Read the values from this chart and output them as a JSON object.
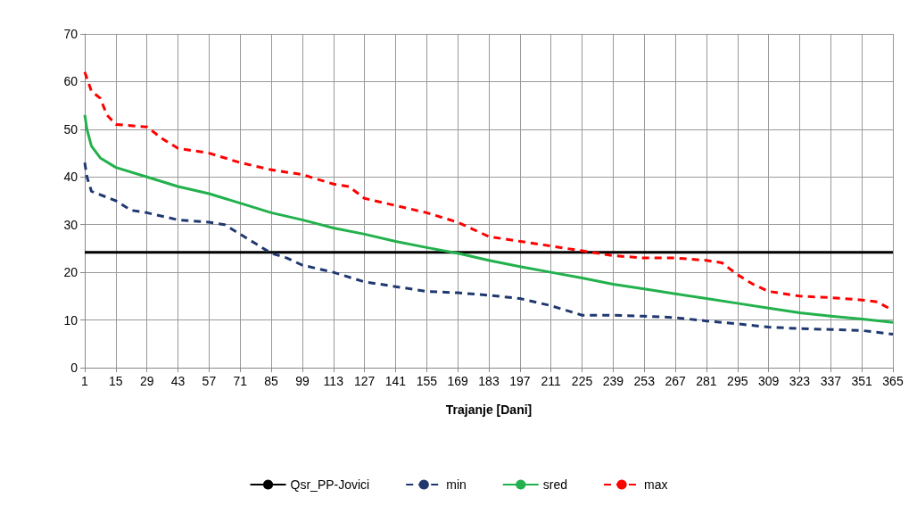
{
  "chart_data": {
    "type": "line",
    "xlabel": "Trajanje [Dani]",
    "xlim": [
      1,
      365
    ],
    "xticks": [
      1,
      15,
      29,
      43,
      57,
      71,
      85,
      99,
      113,
      127,
      141,
      155,
      169,
      183,
      197,
      211,
      225,
      239,
      253,
      267,
      281,
      295,
      309,
      323,
      337,
      351,
      365
    ],
    "ylim": [
      0,
      70
    ],
    "yticks": [
      0,
      10,
      20,
      30,
      40,
      50,
      60,
      70
    ],
    "grid": true,
    "legend": "bottom",
    "marker": "none",
    "series": [
      {
        "name": "Qsr_PP-Jovici",
        "color": "#000000",
        "line_style": "solid",
        "x": [
          1,
          365
        ],
        "values": [
          24.2,
          24.2
        ]
      },
      {
        "name": "min",
        "color": "#1f3870",
        "line_style": "dashed",
        "x": [
          1,
          2,
          4,
          15,
          22,
          29,
          43,
          57,
          64,
          71,
          78,
          85,
          92,
          99,
          113,
          127,
          141,
          155,
          169,
          183,
          197,
          211,
          218,
          225,
          239,
          253,
          267,
          281,
          295,
          309,
          323,
          337,
          351,
          365
        ],
        "values": [
          43,
          40,
          37,
          35,
          33,
          32.5,
          31,
          30.5,
          30,
          28,
          26,
          24,
          23,
          21.5,
          20,
          18,
          17,
          16,
          15.7,
          15.2,
          14.5,
          13,
          12,
          11,
          11,
          10.8,
          10.5,
          9.8,
          9.2,
          8.5,
          8.2,
          8,
          7.8,
          7
        ]
      },
      {
        "name": "sred",
        "color": "#22b14c",
        "line_style": "solid",
        "x": [
          1,
          2,
          4,
          8,
          15,
          29,
          43,
          57,
          71,
          85,
          99,
          113,
          127,
          141,
          155,
          169,
          183,
          197,
          211,
          225,
          239,
          253,
          267,
          281,
          295,
          309,
          323,
          337,
          351,
          365
        ],
        "values": [
          53,
          50,
          46.5,
          44,
          42,
          40,
          38,
          36.5,
          34.5,
          32.5,
          31,
          29.3,
          28,
          26.5,
          25.2,
          24,
          22.5,
          21.2,
          20,
          18.8,
          17.5,
          16.5,
          15.5,
          14.5,
          13.5,
          12.5,
          11.5,
          10.8,
          10.2,
          9.5
        ]
      },
      {
        "name": "max",
        "color": "#ff0000",
        "line_style": "dashed",
        "x": [
          1,
          4,
          8,
          11,
          15,
          29,
          36,
          43,
          57,
          71,
          85,
          99,
          113,
          120,
          127,
          141,
          155,
          169,
          176,
          183,
          197,
          211,
          225,
          239,
          253,
          267,
          281,
          288,
          295,
          302,
          309,
          323,
          337,
          351,
          358,
          365
        ],
        "values": [
          62,
          58,
          56.5,
          53,
          51,
          50.5,
          48,
          46,
          45,
          43,
          41.5,
          40.5,
          38.5,
          38,
          35.5,
          34,
          32.5,
          30.5,
          29,
          27.5,
          26.5,
          25.5,
          24.5,
          23.5,
          23,
          23,
          22.5,
          22,
          19.5,
          17.5,
          16,
          15,
          14.7,
          14.2,
          13.8,
          12
        ]
      }
    ]
  }
}
